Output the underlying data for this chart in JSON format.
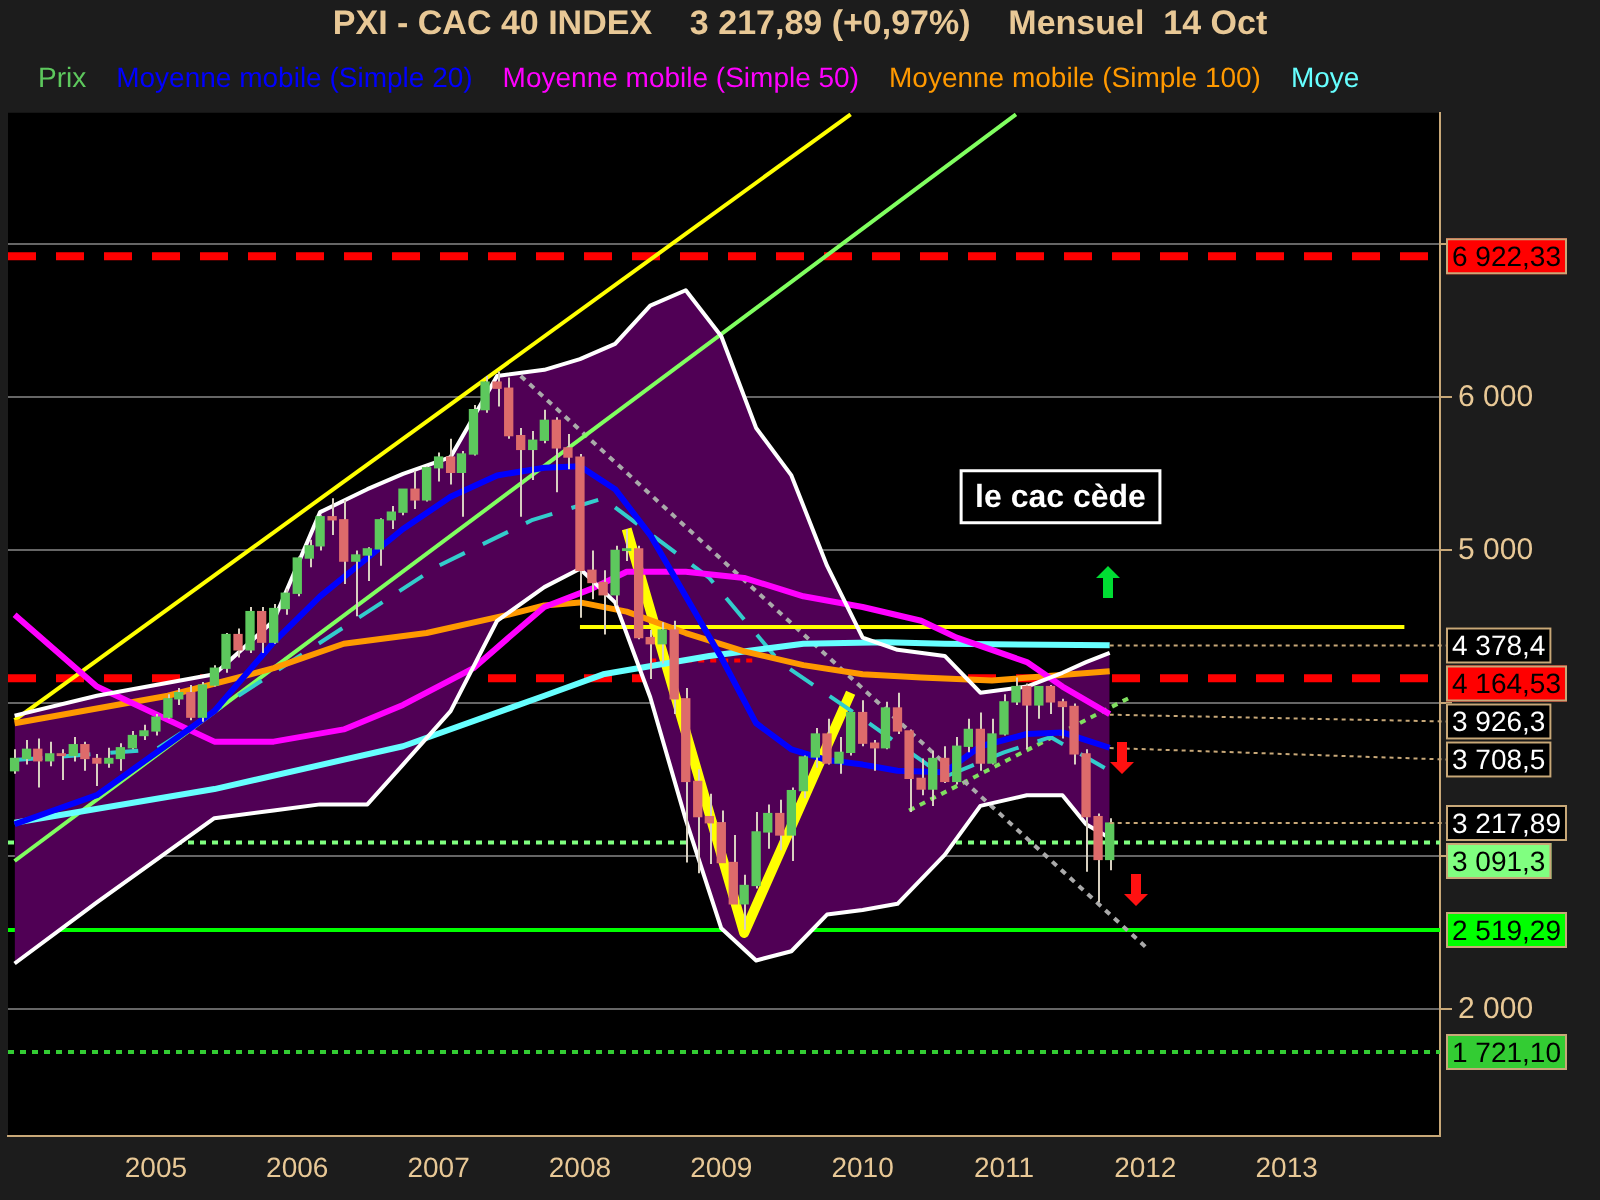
{
  "chart_data": {
    "type": "candlestick",
    "title": "PXI - CAC 40 INDEX    3 217,89 (+0,97%)    Mensuel  14 Oct",
    "x": [
      "2004-01",
      "2004-02",
      "2004-03",
      "2004-04",
      "2004-05",
      "2004-06",
      "2004-07",
      "2004-08",
      "2004-09",
      "2004-10",
      "2004-11",
      "2004-12",
      "2005-01",
      "2005-02",
      "2005-03",
      "2005-04",
      "2005-05",
      "2005-06",
      "2005-07",
      "2005-08",
      "2005-09",
      "2005-10",
      "2005-11",
      "2005-12",
      "2006-01",
      "2006-02",
      "2006-03",
      "2006-04",
      "2006-05",
      "2006-06",
      "2006-07",
      "2006-08",
      "2006-09",
      "2006-10",
      "2006-11",
      "2006-12",
      "2007-01",
      "2007-02",
      "2007-03",
      "2007-04",
      "2007-05",
      "2007-06",
      "2007-07",
      "2007-08",
      "2007-09",
      "2007-10",
      "2007-11",
      "2007-12",
      "2008-01",
      "2008-02",
      "2008-03",
      "2008-04",
      "2008-05",
      "2008-06",
      "2008-07",
      "2008-08",
      "2008-09",
      "2008-10",
      "2008-11",
      "2008-12",
      "2009-01",
      "2009-02",
      "2009-03",
      "2009-04",
      "2009-05",
      "2009-06",
      "2009-07",
      "2009-08",
      "2009-09",
      "2009-10",
      "2009-11",
      "2009-12",
      "2010-01",
      "2010-02",
      "2010-03",
      "2010-04",
      "2010-05",
      "2010-06",
      "2010-07",
      "2010-08",
      "2010-09",
      "2010-10",
      "2010-11",
      "2010-12",
      "2011-01",
      "2011-02",
      "2011-03",
      "2011-04",
      "2011-05",
      "2011-06",
      "2011-07",
      "2011-08",
      "2011-09",
      "2011-10"
    ],
    "series": [
      {
        "name": "Prix",
        "color": "#d8d0c0",
        "colors": [
          "#5dc85d",
          "#5dc85d",
          "#dd6b6b",
          "#5dc85d",
          "#dd6b6b",
          "#5dc85d",
          "#dd6b6b",
          "#dd6b6b",
          "#5dc85d",
          "#5dc85d",
          "#5dc85d",
          "#5dc85d",
          "#5dc85d",
          "#5dc85d",
          "#5dc85d",
          "#dd6b6b",
          "#5dc85d",
          "#5dc85d",
          "#5dc85d",
          "#dd6b6b",
          "#5dc85d",
          "#dd6b6b",
          "#5dc85d",
          "#5dc85d",
          "#5dc85d",
          "#5dc85d",
          "#5dc85d",
          "#dd6b6b",
          "#dd6b6b",
          "#5dc85d",
          "#5dc85d",
          "#5dc85d",
          "#5dc85d",
          "#5dc85d",
          "#dd6b6b",
          "#5dc85d",
          "#5dc85d",
          "#dd6b6b",
          "#5dc85d",
          "#5dc85d",
          "#5dc85d",
          "#dd6b6b",
          "#dd6b6b",
          "#dd6b6b",
          "#5dc85d",
          "#5dc85d",
          "#dd6b6b",
          "#dd6b6b",
          "#dd6b6b",
          "#dd6b6b",
          "#dd6b6b",
          "#5dc85d",
          "#5dc85d",
          "#dd6b6b",
          "#dd6b6b",
          "#5dc85d",
          "#dd6b6b",
          "#dd6b6b",
          "#dd6b6b",
          "#dd6b6b",
          "#dd6b6b",
          "#dd6b6b",
          "#5dc85d",
          "#5dc85d",
          "#5dc85d",
          "#dd6b6b",
          "#5dc85d",
          "#5dc85d",
          "#5dc85d",
          "#dd6b6b",
          "#5dc85d",
          "#5dc85d",
          "#dd6b6b",
          "#dd6b6b",
          "#5dc85d",
          "#dd6b6b",
          "#dd6b6b",
          "#dd6b6b",
          "#5dc85d",
          "#dd6b6b",
          "#5dc85d",
          "#5dc85d",
          "#dd6b6b",
          "#5dc85d",
          "#5dc85d",
          "#5dc85d",
          "#dd6b6b",
          "#5dc85d",
          "#dd6b6b",
          "#dd6b6b",
          "#dd6b6b",
          "#dd6b6b",
          "#dd6b6b",
          "#5dc85d"
        ],
        "ohlc": [
          [
            3560,
            3700,
            3540,
            3640
          ],
          [
            3640,
            3760,
            3600,
            3700
          ],
          [
            3700,
            3770,
            3450,
            3625
          ],
          [
            3625,
            3750,
            3590,
            3670
          ],
          [
            3670,
            3700,
            3500,
            3660
          ],
          [
            3660,
            3780,
            3620,
            3730
          ],
          [
            3730,
            3750,
            3560,
            3640
          ],
          [
            3640,
            3670,
            3460,
            3610
          ],
          [
            3610,
            3710,
            3580,
            3640
          ],
          [
            3640,
            3740,
            3560,
            3710
          ],
          [
            3710,
            3820,
            3700,
            3790
          ],
          [
            3790,
            3860,
            3760,
            3820
          ],
          [
            3820,
            3930,
            3790,
            3910
          ],
          [
            3910,
            4060,
            3900,
            4030
          ],
          [
            4030,
            4100,
            3990,
            4070
          ],
          [
            4070,
            4120,
            3890,
            3910
          ],
          [
            3910,
            4140,
            3880,
            4120
          ],
          [
            4120,
            4250,
            4110,
            4230
          ],
          [
            4230,
            4460,
            4200,
            4450
          ],
          [
            4450,
            4490,
            4300,
            4350
          ],
          [
            4350,
            4630,
            4330,
            4600
          ],
          [
            4600,
            4630,
            4330,
            4400
          ],
          [
            4400,
            4650,
            4390,
            4620
          ],
          [
            4620,
            4750,
            4580,
            4720
          ],
          [
            4720,
            4960,
            4700,
            4950
          ],
          [
            4950,
            5070,
            4890,
            5030
          ],
          [
            5030,
            5230,
            5000,
            5220
          ],
          [
            5220,
            5340,
            5100,
            5200
          ],
          [
            5200,
            5330,
            4780,
            4930
          ],
          [
            4930,
            5000,
            4570,
            4970
          ],
          [
            4970,
            5020,
            4800,
            5010
          ],
          [
            5010,
            5210,
            4900,
            5200
          ],
          [
            5200,
            5290,
            5140,
            5250
          ],
          [
            5250,
            5400,
            5230,
            5400
          ],
          [
            5400,
            5520,
            5270,
            5330
          ],
          [
            5330,
            5550,
            5320,
            5540
          ],
          [
            5540,
            5640,
            5450,
            5610
          ],
          [
            5610,
            5730,
            5430,
            5510
          ],
          [
            5510,
            5650,
            5220,
            5630
          ],
          [
            5630,
            5950,
            5620,
            5920
          ],
          [
            5920,
            6140,
            5900,
            6100
          ],
          [
            6100,
            6170,
            5940,
            6060
          ],
          [
            6060,
            6130,
            5730,
            5750
          ],
          [
            5750,
            5800,
            5220,
            5660
          ],
          [
            5660,
            5780,
            5460,
            5720
          ],
          [
            5720,
            5920,
            5700,
            5850
          ],
          [
            5850,
            5870,
            5380,
            5670
          ],
          [
            5670,
            5760,
            5530,
            5610
          ],
          [
            5610,
            5630,
            4560,
            4870
          ],
          [
            4870,
            5000,
            4680,
            4790
          ],
          [
            4790,
            4870,
            4450,
            4710
          ],
          [
            4710,
            5030,
            4640,
            5000
          ],
          [
            5000,
            5140,
            4930,
            5010
          ],
          [
            5010,
            5030,
            4420,
            4430
          ],
          [
            4430,
            4480,
            4160,
            4390
          ],
          [
            4390,
            4530,
            4260,
            4480
          ],
          [
            4480,
            4540,
            3930,
            4030
          ],
          [
            4030,
            4100,
            2960,
            3490
          ],
          [
            3490,
            3570,
            2890,
            3260
          ],
          [
            3260,
            3410,
            2950,
            3220
          ],
          [
            3220,
            3300,
            2960,
            2960
          ],
          [
            2960,
            3140,
            2690,
            2690
          ],
          [
            2690,
            2880,
            2520,
            2810
          ],
          [
            2810,
            3290,
            2790,
            3160
          ],
          [
            3160,
            3340,
            3050,
            3280
          ],
          [
            3280,
            3370,
            3040,
            3140
          ],
          [
            3140,
            3450,
            2970,
            3430
          ],
          [
            3430,
            3660,
            3380,
            3650
          ],
          [
            3650,
            3840,
            3580,
            3800
          ],
          [
            3800,
            3900,
            3600,
            3610
          ],
          [
            3610,
            3780,
            3540,
            3680
          ],
          [
            3680,
            3940,
            3660,
            3940
          ],
          [
            3940,
            4020,
            3720,
            3740
          ],
          [
            3740,
            3760,
            3560,
            3710
          ],
          [
            3710,
            4010,
            3700,
            3970
          ],
          [
            3970,
            4070,
            3800,
            3820
          ],
          [
            3820,
            3830,
            3290,
            3510
          ],
          [
            3510,
            3640,
            3400,
            3440
          ],
          [
            3440,
            3690,
            3330,
            3640
          ],
          [
            3640,
            3720,
            3480,
            3490
          ],
          [
            3490,
            3780,
            3470,
            3720
          ],
          [
            3720,
            3900,
            3680,
            3830
          ],
          [
            3830,
            3940,
            3560,
            3610
          ],
          [
            3610,
            3900,
            3600,
            3800
          ],
          [
            3800,
            4060,
            3790,
            4010
          ],
          [
            4010,
            4170,
            3990,
            4110
          ],
          [
            4110,
            4130,
            3700,
            3990
          ],
          [
            3990,
            4110,
            3900,
            4110
          ],
          [
            4110,
            4120,
            3930,
            4010
          ],
          [
            4010,
            4030,
            3770,
            3980
          ],
          [
            3980,
            4000,
            3600,
            3670
          ],
          [
            3670,
            3700,
            2900,
            3260
          ],
          [
            3260,
            3280,
            2700,
            2980
          ],
          [
            2980,
            3250,
            2910,
            3217.89
          ]
        ]
      },
      {
        "name": "Moyenne mobile (Simple 20)",
        "type": "line",
        "color": "#0000ff",
        "x": [
          "2004-01",
          "2004-08",
          "2005-06",
          "2005-11",
          "2006-03",
          "2006-07",
          "2006-10",
          "2007-02",
          "2007-06",
          "2007-10",
          "2008-01",
          "2008-04",
          "2008-07",
          "2008-10",
          "2009-01",
          "2009-04",
          "2009-07",
          "2009-10",
          "2010-01",
          "2010-04",
          "2010-08",
          "2010-11",
          "2011-03",
          "2011-06",
          "2011-08",
          "2011-10"
        ],
        "values": [
          3210,
          3400,
          3950,
          4400,
          4700,
          4950,
          5140,
          5350,
          5490,
          5540,
          5550,
          5400,
          5100,
          4700,
          4300,
          3870,
          3700,
          3630,
          3600,
          3560,
          3550,
          3720,
          3800,
          3810,
          3760,
          3710
        ],
        "upper": [
          3920,
          4050,
          4190,
          4540,
          5250,
          5400,
          5500,
          5610,
          6140,
          6180,
          6250,
          6350,
          6600,
          6700,
          6400,
          5800,
          5490,
          4900,
          4430,
          4350,
          4310,
          4070,
          4110,
          4200,
          4270,
          4330
        ],
        "lower": [
          2300,
          2700,
          3250,
          3300,
          3340,
          3340,
          3600,
          3950,
          4540,
          4760,
          4880,
          4660,
          4040,
          3240,
          2530,
          2320,
          2380,
          2620,
          2650,
          2690,
          3010,
          3330,
          3400,
          3400,
          3210,
          3120
        ]
      },
      {
        "type": "line",
        "color": "#ffffff",
        "x": [
          "2004-01",
          "2004-08",
          "2005-06",
          "2005-11",
          "2006-03",
          "2006-07",
          "2006-10",
          "2007-02",
          "2007-06",
          "2007-10",
          "2008-01",
          "2008-04",
          "2008-07",
          "2008-10",
          "2009-01",
          "2009-04",
          "2009-07",
          "2009-10",
          "2010-01",
          "2010-04",
          "2010-08",
          "2010-11",
          "2011-03",
          "2011-06",
          "2011-08",
          "2011-10"
        ],
        "values": [
          3920,
          4050,
          4190,
          4540,
          5250,
          5400,
          5500,
          5610,
          6140,
          6180,
          6250,
          6350,
          6600,
          6700,
          6400,
          5800,
          5490,
          4900,
          4430,
          4350,
          4310,
          4070,
          4110,
          4200,
          4270,
          4330
        ]
      },
      {
        "type": "line",
        "color": "#ffffff",
        "x": [
          "2004-01",
          "2004-08",
          "2005-06",
          "2005-11",
          "2006-03",
          "2006-07",
          "2006-10",
          "2007-02",
          "2007-06",
          "2007-10",
          "2008-01",
          "2008-04",
          "2008-07",
          "2008-10",
          "2009-01",
          "2009-04",
          "2009-07",
          "2009-10",
          "2010-01",
          "2010-04",
          "2010-08",
          "2010-11",
          "2011-03",
          "2011-06",
          "2011-08",
          "2011-10"
        ],
        "values": [
          2300,
          2700,
          3250,
          3300,
          3340,
          3340,
          3600,
          3950,
          4540,
          4760,
          4880,
          4660,
          4040,
          3240,
          2530,
          2320,
          2380,
          2620,
          2650,
          2690,
          3010,
          3330,
          3400,
          3400,
          3210,
          3120
        ]
      },
      {
        "name": "Moyenne mobile (Simple 50)",
        "type": "line",
        "color": "#ff00ff",
        "x": [
          "2004-01",
          "2004-08",
          "2005-06",
          "2005-11",
          "2006-05",
          "2006-10",
          "2007-04",
          "2007-07",
          "2007-10",
          "2008-02",
          "2008-05",
          "2008-10",
          "2009-03",
          "2009-08",
          "2010-01",
          "2010-06",
          "2010-09",
          "2011-03",
          "2011-06",
          "2011-10"
        ],
        "values": [
          4580,
          4110,
          3750,
          3750,
          3830,
          3990,
          4230,
          4430,
          4630,
          4750,
          4860,
          4860,
          4820,
          4700,
          4630,
          4540,
          4430,
          4270,
          4110,
          3930
        ]
      },
      {
        "name": "Moyenne mobile (Simple 100)",
        "type": "line",
        "color": "#ff9900",
        "x": [
          "2004-01",
          "2005-02",
          "2005-11",
          "2006-05",
          "2006-12",
          "2007-07",
          "2007-10",
          "2008-01",
          "2008-05",
          "2008-10",
          "2009-03",
          "2009-08",
          "2010-01",
          "2010-06",
          "2010-12",
          "2011-10"
        ],
        "values": [
          3870,
          4050,
          4230,
          4390,
          4460,
          4580,
          4640,
          4660,
          4600,
          4460,
          4340,
          4250,
          4190,
          4170,
          4150,
          4210
        ]
      },
      {
        "name": "Moye",
        "type": "line",
        "color": "#66ffff",
        "x": [
          "2004-01",
          "2005-06",
          "2006-10",
          "2007-10",
          "2008-03",
          "2008-12",
          "2009-08",
          "2010-03",
          "2010-08",
          "2011-10"
        ],
        "values": [
          3220,
          3440,
          3720,
          4050,
          4190,
          4310,
          4390,
          4400,
          4390,
          4380
        ]
      },
      {
        "type": "line",
        "color": "#33cccc",
        "line_style": "dashed",
        "x": [
          "2004-01",
          "2005-01",
          "2006-01",
          "2007-01",
          "2007-09",
          "2008-03",
          "2008-12",
          "2009-06",
          "2010-01",
          "2010-08",
          "2011-01",
          "2011-05",
          "2011-10"
        ],
        "values": [
          3630,
          3700,
          4300,
          4900,
          5200,
          5340,
          4820,
          4270,
          3900,
          3520,
          3680,
          3780,
          3560
        ]
      },
      {
        "type": "line",
        "color": "#ffff00",
        "x": [
          "2004-01",
          "2009-12"
        ],
        "values": [
          3890,
          7850
        ]
      },
      {
        "type": "line",
        "color": "#80ff60",
        "x": [
          "2004-01",
          "2011-02"
        ],
        "values": [
          2970,
          7850
        ]
      },
      {
        "type": "line",
        "color": "#ffff00",
        "x": [
          "2008-05",
          "2009-03",
          "2009-12"
        ],
        "values": [
          5140,
          2500,
          4070
        ]
      },
      {
        "type": "line",
        "color": "#ffff00",
        "x": [
          "2008-01",
          "2013-11"
        ],
        "values": [
          4500,
          4500
        ]
      },
      {
        "type": "line",
        "color": "#aaaaaa",
        "line_style": "dotted",
        "x": [
          "2007-08",
          "2012-01"
        ],
        "values": [
          6140,
          2410
        ]
      },
      {
        "type": "line",
        "color": "#80e060",
        "line_style": "dotted",
        "x": [
          "2010-05",
          "2011-12"
        ],
        "values": [
          3300,
          4050
        ]
      },
      {
        "type": "line",
        "color": "#ff0000",
        "line_style": "dotted",
        "x": [
          "2008-07",
          "2009-04"
        ],
        "values": [
          4280,
          4280
        ]
      }
    ],
    "ref_lines": [
      {
        "axis": "y",
        "value": 6922.33,
        "label": "6 922,33",
        "color": "#ff0000",
        "line_style": "dashed"
      },
      {
        "axis": "y",
        "value": 4164.53,
        "label": "4 164,53",
        "color": "#ff0000",
        "line_style": "dashed"
      },
      {
        "axis": "y",
        "value": 3091.3,
        "label": "3 091,3",
        "color": "#80ff80",
        "line_style": "dotted"
      },
      {
        "axis": "y",
        "value": 2519.29,
        "label": "2 519,29",
        "color": "#00ff00",
        "line_style": "solid"
      },
      {
        "axis": "y",
        "value": 1721.1,
        "label": "1 721,10",
        "color": "#33cc33",
        "line_style": "dotted"
      }
    ],
    "annotations": [
      "le cac cède",
      {
        "text": "4 378,4",
        "x": "2011-10",
        "y": 4378.4
      },
      {
        "text": "3 926,3",
        "x": "2011-10",
        "y": 3926.3
      },
      {
        "text": "3 708,5",
        "x": "2011-10",
        "y": 3708.5
      },
      {
        "text": "3 217,89",
        "x": "2011-10",
        "y": 3217.89
      }
    ],
    "xlim": [
      "2003-12-15",
      "2014-02-01"
    ],
    "xticks": [
      "2005",
      "2006",
      "2007",
      "2008",
      "2009",
      "2010",
      "2011",
      "2012",
      "2013"
    ],
    "ylim": [
      1170,
      7860
    ],
    "yticks": [
      {
        "value": 2000,
        "label": "2 000"
      },
      {
        "value": 3000,
        "label": null
      },
      {
        "value": 4000,
        "label": null
      },
      {
        "value": 5000,
        "label": "5 000"
      },
      {
        "value": 6000,
        "label": "6 000"
      },
      {
        "value": 7000,
        "label": null
      }
    ],
    "grid": "y",
    "legend": "top"
  }
}
